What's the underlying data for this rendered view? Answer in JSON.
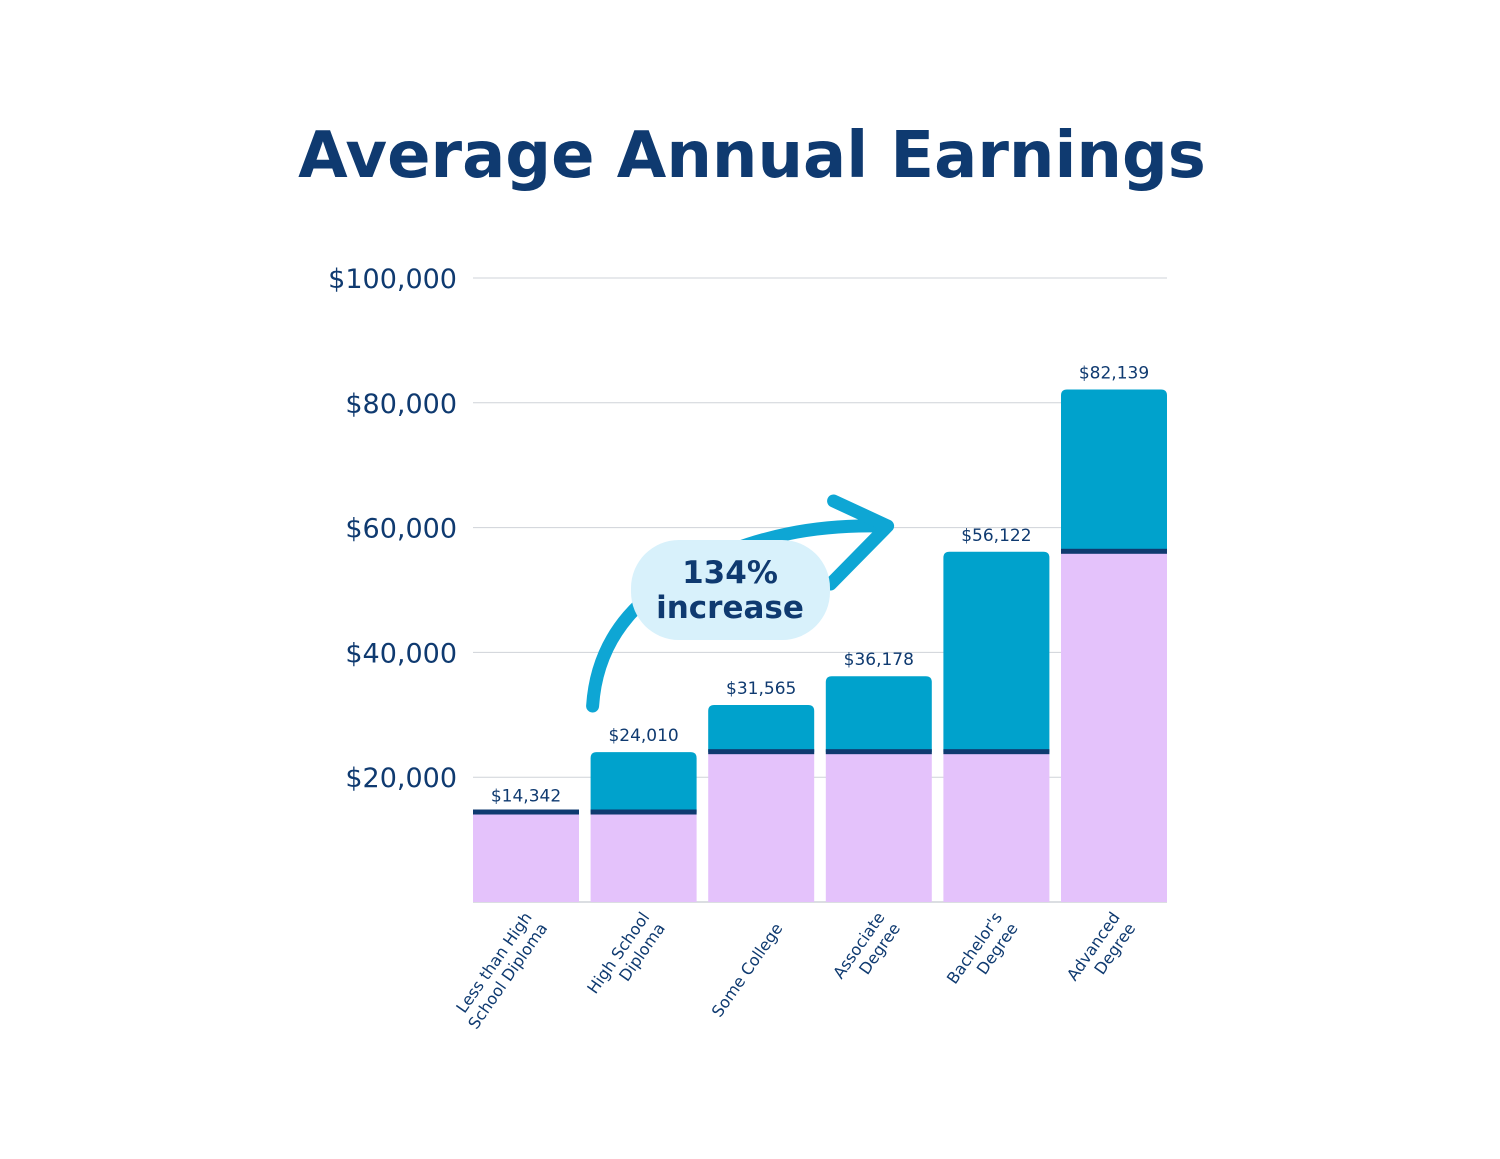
{
  "chart_data": {
    "type": "bar",
    "title": "Average Annual Earnings",
    "categories": [
      [
        "Less than High",
        "School Diploma"
      ],
      [
        "High School",
        "Diploma"
      ],
      [
        "Some College"
      ],
      [
        "Associate",
        "Degree"
      ],
      [
        "Bachelor's",
        "Degree"
      ],
      [
        "Advanced",
        "Degree"
      ]
    ],
    "values": [
      14342,
      24010,
      31565,
      36178,
      56122,
      82139
    ],
    "value_labels": [
      "$14,342",
      "$24,010",
      "$31,565",
      "$36,178",
      "$56,122",
      "$82,139"
    ],
    "baseline_values": [
      14342,
      14342,
      24010,
      24010,
      24010,
      56122
    ],
    "ylim": [
      0,
      100000
    ],
    "y_ticks": [
      20000,
      40000,
      60000,
      80000,
      100000
    ],
    "y_tick_labels": [
      "$20,000",
      "$40,000",
      "$60,000",
      "$80,000",
      "$100,000"
    ],
    "grid": true,
    "annotation": {
      "lines": [
        "134%",
        "increase"
      ],
      "from_category": 1,
      "to_category": 4
    },
    "colors": {
      "bar_top": "#00a2cc",
      "bar_base": "#e4c2fb",
      "baseline_line": "#0f3a70",
      "text": "#0f3a70",
      "grid": "#cfd3d8",
      "callout_bg": "#d8f1fb",
      "arrow": "#0ea6d4"
    }
  }
}
